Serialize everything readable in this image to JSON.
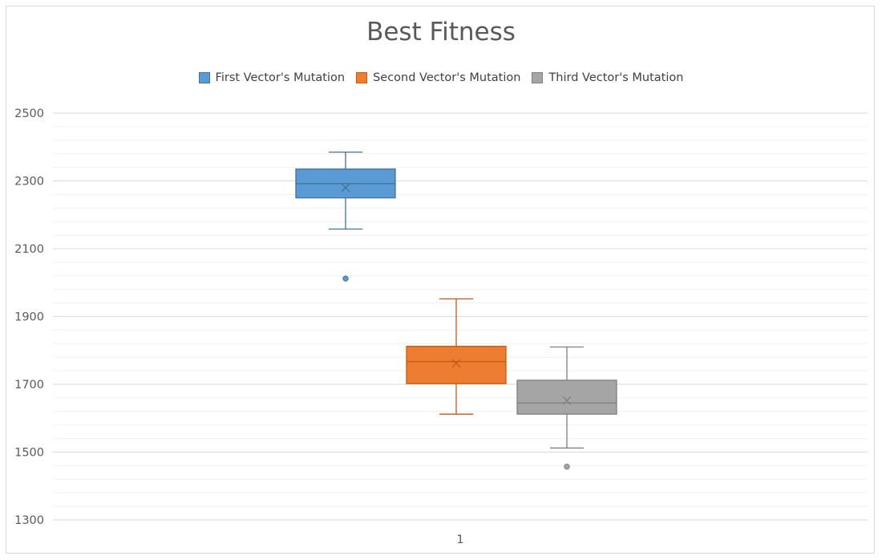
{
  "chart_data": {
    "type": "box",
    "title": "Best Fitness",
    "categories": [
      "1"
    ],
    "ylim": [
      1300,
      2500
    ],
    "y_ticks": [
      "2500",
      "2300",
      "2100",
      "1900",
      "1700",
      "1500",
      "1300"
    ],
    "y_tick_values": [
      2500,
      2300,
      2100,
      1900,
      1700,
      1500,
      1300
    ],
    "minor_gridlines": true,
    "legend_position": "top",
    "series": [
      {
        "name": "First Vector's Mutation",
        "color": "#5b9bd5",
        "stroke": "#41719c",
        "whisker_low": 2158,
        "q1": 2250,
        "median": 2292,
        "q3": 2335,
        "whisker_high": 2385,
        "mean": 2280,
        "outliers": [
          2012
        ]
      },
      {
        "name": "Second Vector's Mutation",
        "color": "#ed7d31",
        "stroke": "#c55a11",
        "whisker_low": 1612,
        "q1": 1702,
        "median": 1767,
        "q3": 1812,
        "whisker_high": 1952,
        "mean": 1762,
        "outliers": []
      },
      {
        "name": "Third Vector's Mutation",
        "color": "#a5a5a5",
        "stroke": "#7f7f7f",
        "whisker_low": 1512,
        "q1": 1612,
        "median": 1645,
        "q3": 1712,
        "whisker_high": 1810,
        "mean": 1652,
        "outliers": [
          1457
        ]
      }
    ]
  }
}
